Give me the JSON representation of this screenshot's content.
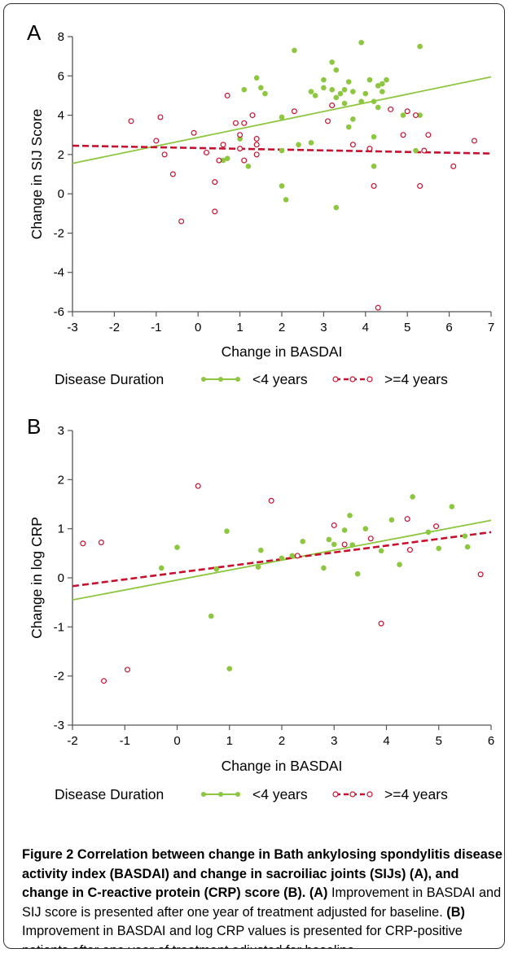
{
  "chart_data": [
    {
      "type": "scatter",
      "panel_label": "A",
      "xlabel": "Change in BASDAI",
      "ylabel": "Change in SIJ Score",
      "xlim": [
        -3,
        7
      ],
      "ylim": [
        -6,
        8
      ],
      "xticks": [
        "-3",
        "-2",
        "-1",
        "0",
        "1",
        "2",
        "3",
        "4",
        "5",
        "6",
        "7"
      ],
      "yticks": [
        "-6",
        "-4",
        "-2",
        "0",
        "2",
        "4",
        "6",
        "8"
      ],
      "grid": false,
      "legend": {
        "title": "Disease Duration",
        "placement": "bottom"
      },
      "series": [
        {
          "name": "<4 years",
          "color": "#8dc63f",
          "marker": "filled-circle",
          "line": "solid",
          "fit": [
            [
              -3,
              1.55
            ],
            [
              7,
              5.95
            ]
          ],
          "points": [
            [
              0.6,
              1.7
            ],
            [
              0.7,
              1.8
            ],
            [
              1.0,
              2.8
            ],
            [
              1.1,
              5.3
            ],
            [
              1.2,
              1.4
            ],
            [
              1.4,
              5.9
            ],
            [
              1.5,
              5.4
            ],
            [
              1.6,
              5.1
            ],
            [
              2.0,
              0.4
            ],
            [
              2.0,
              2.2
            ],
            [
              2.0,
              3.9
            ],
            [
              2.1,
              -0.3
            ],
            [
              2.3,
              7.3
            ],
            [
              2.4,
              2.5
            ],
            [
              2.7,
              2.6
            ],
            [
              2.7,
              5.2
            ],
            [
              2.8,
              5.0
            ],
            [
              3.0,
              5.4
            ],
            [
              3.0,
              5.8
            ],
            [
              3.2,
              6.7
            ],
            [
              3.2,
              5.3
            ],
            [
              3.3,
              4.9
            ],
            [
              3.3,
              6.3
            ],
            [
              3.3,
              -0.7
            ],
            [
              3.4,
              5.1
            ],
            [
              3.5,
              5.3
            ],
            [
              3.5,
              4.6
            ],
            [
              3.6,
              3.4
            ],
            [
              3.6,
              5.7
            ],
            [
              3.7,
              5.2
            ],
            [
              3.7,
              3.8
            ],
            [
              3.9,
              7.7
            ],
            [
              3.9,
              4.7
            ],
            [
              4.0,
              5.1
            ],
            [
              4.1,
              5.8
            ],
            [
              4.2,
              1.4
            ],
            [
              4.2,
              2.9
            ],
            [
              4.2,
              4.7
            ],
            [
              4.3,
              5.5
            ],
            [
              4.3,
              4.4
            ],
            [
              4.4,
              5.6
            ],
            [
              4.4,
              5.2
            ],
            [
              4.5,
              5.8
            ],
            [
              4.9,
              4.0
            ],
            [
              5.2,
              2.2
            ],
            [
              5.3,
              4.0
            ],
            [
              5.3,
              7.5
            ]
          ]
        },
        {
          "name": ">=4 years",
          "color": "#c8102e",
          "marker": "open-circle",
          "line": "dashed",
          "fit": [
            [
              -3,
              2.45
            ],
            [
              7,
              2.05
            ]
          ],
          "points": [
            [
              -1.6,
              3.7
            ],
            [
              -1.0,
              2.7
            ],
            [
              -0.9,
              3.9
            ],
            [
              -0.8,
              2.0
            ],
            [
              -0.6,
              1.0
            ],
            [
              -0.4,
              -1.4
            ],
            [
              -0.1,
              3.1
            ],
            [
              0.2,
              2.1
            ],
            [
              0.4,
              0.6
            ],
            [
              0.4,
              -0.9
            ],
            [
              0.5,
              1.7
            ],
            [
              0.6,
              2.5
            ],
            [
              0.7,
              5.0
            ],
            [
              0.9,
              3.6
            ],
            [
              1.0,
              2.3
            ],
            [
              1.0,
              3.0
            ],
            [
              1.1,
              1.7
            ],
            [
              1.1,
              3.6
            ],
            [
              1.3,
              4.0
            ],
            [
              1.4,
              2.0
            ],
            [
              1.4,
              2.5
            ],
            [
              1.4,
              2.8
            ],
            [
              2.3,
              4.2
            ],
            [
              3.1,
              3.7
            ],
            [
              3.2,
              4.5
            ],
            [
              3.7,
              2.5
            ],
            [
              4.1,
              2.3
            ],
            [
              4.2,
              0.4
            ],
            [
              4.3,
              -5.8
            ],
            [
              4.6,
              4.3
            ],
            [
              4.9,
              3.0
            ],
            [
              5.0,
              4.2
            ],
            [
              5.2,
              4.0
            ],
            [
              5.3,
              0.4
            ],
            [
              5.4,
              2.2
            ],
            [
              5.5,
              3.0
            ],
            [
              6.1,
              1.4
            ],
            [
              6.6,
              2.7
            ]
          ]
        }
      ]
    },
    {
      "type": "scatter",
      "panel_label": "B",
      "xlabel": "Change in BASDAI",
      "ylabel": "Change in log CRP",
      "xlim": [
        -2,
        6
      ],
      "ylim": [
        -3,
        3
      ],
      "xticks": [
        "-2",
        "-1",
        "0",
        "1",
        "2",
        "3",
        "4",
        "5",
        "6"
      ],
      "yticks": [
        "-3",
        "-2",
        "-1",
        "0",
        "1",
        "2",
        "3"
      ],
      "grid": false,
      "legend": {
        "title": "Disease Duration",
        "placement": "bottom"
      },
      "series": [
        {
          "name": "<4 years",
          "color": "#8dc63f",
          "marker": "filled-circle",
          "line": "solid",
          "fit": [
            [
              -2,
              -0.45
            ],
            [
              6,
              1.17
            ]
          ],
          "points": [
            [
              -0.3,
              0.2
            ],
            [
              0.0,
              0.62
            ],
            [
              0.65,
              -0.78
            ],
            [
              0.75,
              0.18
            ],
            [
              0.95,
              0.95
            ],
            [
              1.0,
              -1.85
            ],
            [
              1.55,
              0.22
            ],
            [
              1.6,
              0.56
            ],
            [
              2.0,
              0.4
            ],
            [
              2.2,
              0.45
            ],
            [
              2.4,
              0.74
            ],
            [
              2.8,
              0.2
            ],
            [
              2.9,
              0.78
            ],
            [
              3.0,
              0.68
            ],
            [
              3.2,
              0.97
            ],
            [
              3.3,
              1.27
            ],
            [
              3.35,
              0.67
            ],
            [
              3.45,
              0.08
            ],
            [
              3.6,
              1.0
            ],
            [
              3.9,
              0.55
            ],
            [
              4.1,
              1.18
            ],
            [
              4.25,
              0.27
            ],
            [
              4.5,
              1.65
            ],
            [
              4.8,
              0.93
            ],
            [
              5.0,
              0.6
            ],
            [
              5.25,
              1.45
            ],
            [
              5.5,
              0.85
            ],
            [
              5.55,
              0.63
            ]
          ]
        },
        {
          "name": ">=4 years",
          "color": "#c8102e",
          "marker": "open-circle",
          "line": "dashed",
          "fit": [
            [
              -2,
              -0.17
            ],
            [
              6,
              0.93
            ]
          ],
          "points": [
            [
              -1.8,
              0.7
            ],
            [
              -1.45,
              0.72
            ],
            [
              -1.4,
              -2.1
            ],
            [
              -0.95,
              -1.87
            ],
            [
              0.4,
              1.87
            ],
            [
              1.8,
              1.57
            ],
            [
              2.3,
              0.45
            ],
            [
              3.0,
              1.07
            ],
            [
              3.2,
              0.68
            ],
            [
              3.7,
              0.8
            ],
            [
              3.9,
              -0.93
            ],
            [
              4.4,
              1.2
            ],
            [
              4.45,
              0.57
            ],
            [
              4.95,
              1.05
            ],
            [
              5.8,
              0.07
            ]
          ]
        }
      ]
    }
  ],
  "caption": {
    "fig_label": "Figure 2",
    "title": "Correlation between change in Bath ankylosing spondylitis disease activity index (BASDAI) and change in sacroiliac joints (SIJs) (A), and change in C-reactive protein (CRP) score (B).",
    "a_label": "(A)",
    "a_text": "Improvement in BASDAI and SIJ score is presented after one year of treatment adjusted for baseline.",
    "b_label": "(B)",
    "b_text": "Improvement in BASDAI and log CRP values is presented for CRP-positive patients after one year of treatment adjusted for baseline."
  }
}
